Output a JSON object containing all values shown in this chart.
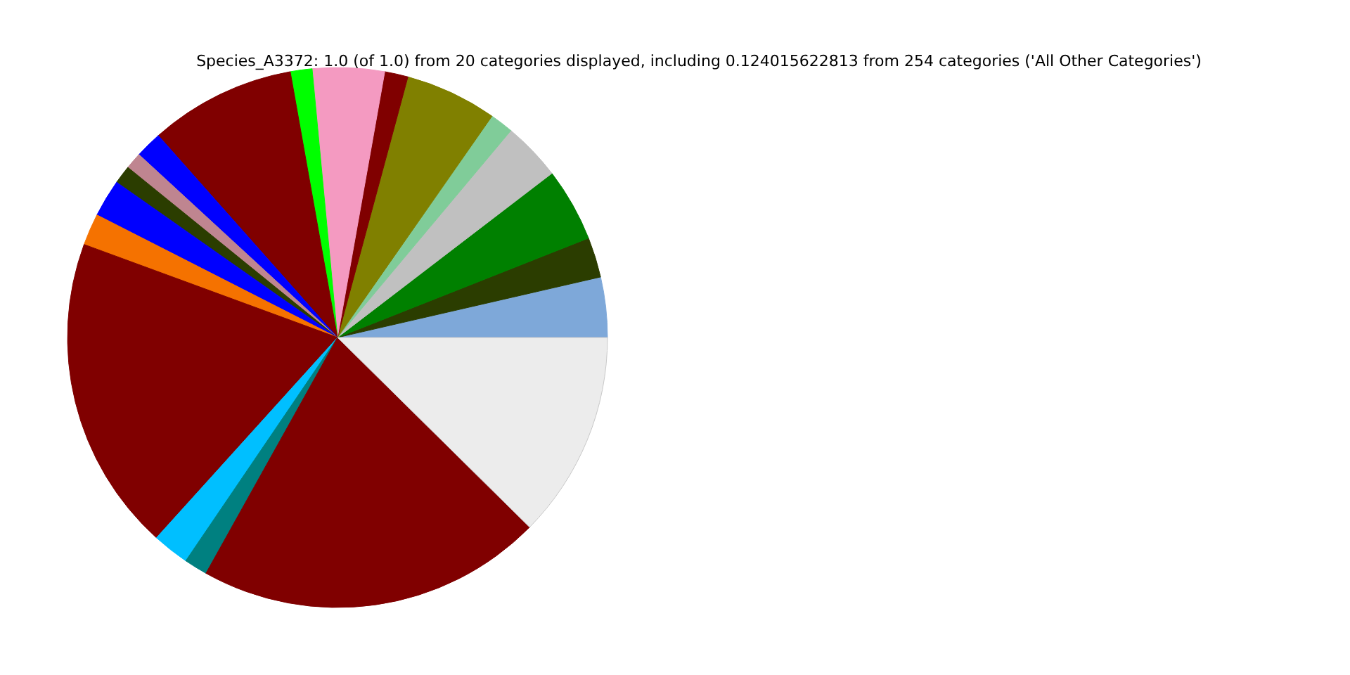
{
  "chart_data": {
    "type": "pie",
    "title": "Species_A3372: 1.0 (of 1.0) from 20 categories displayed, including 0.124015622813 from 254 categories ('All Other Categories')",
    "categories": [
      null,
      null,
      null,
      null,
      null,
      null,
      null,
      null,
      null,
      null,
      null,
      null,
      null,
      null,
      null,
      null,
      null,
      null,
      null,
      null
    ],
    "values": [
      3.6,
      2.4,
      4.4,
      3.5,
      1.4,
      5.5,
      1.4,
      4.3,
      1.3,
      8.75,
      1.6,
      1.0,
      1.1,
      2.25,
      1.9,
      18.9,
      2.2,
      1.4,
      20.7,
      12.4
    ],
    "colors": [
      "#7ea8d9",
      "#2b3d00",
      "#008000",
      "#c0c0c0",
      "#80cc99",
      "#808000",
      "#800000",
      "#f49ac1",
      "#00ff00",
      "#800000",
      "#0000ff",
      "#bf8590",
      "#2b3d00",
      "#0000ff",
      "#f57200",
      "#800000",
      "#00bfff",
      "#008080",
      "#800000",
      "#ececec"
    ]
  }
}
